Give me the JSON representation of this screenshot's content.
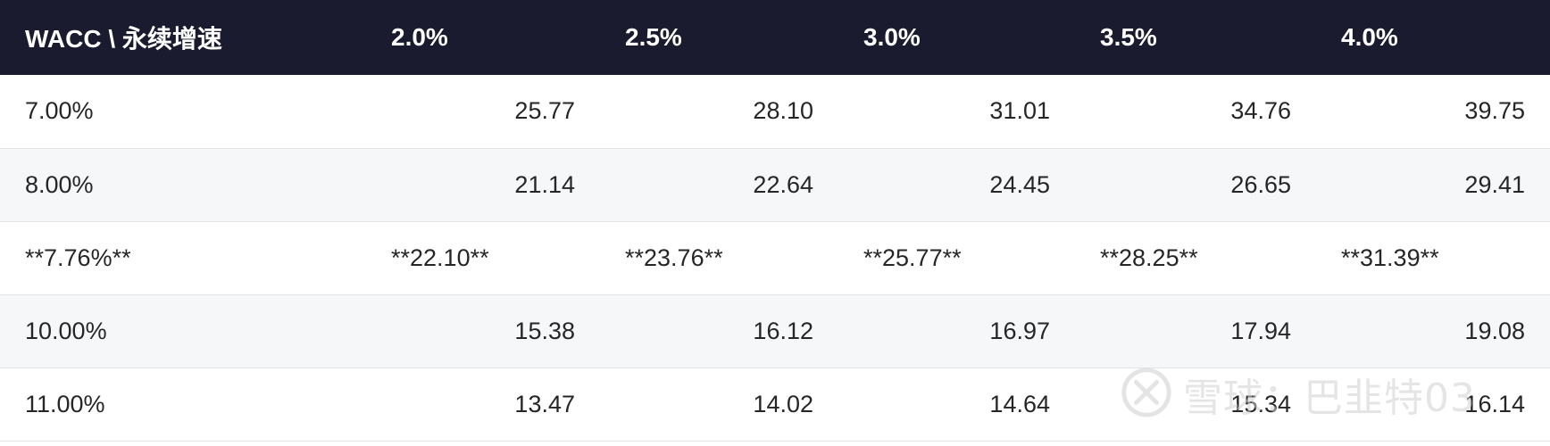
{
  "table": {
    "headers": [
      "WACC \\ 永续增速",
      "2.0%",
      "2.5%",
      "3.0%",
      "3.5%",
      "4.0%"
    ],
    "rows": [
      {
        "label": "7.00%",
        "values": [
          "25.77",
          "28.10",
          "31.01",
          "34.76",
          "39.75"
        ]
      },
      {
        "label": "8.00%",
        "values": [
          "21.14",
          "22.64",
          "24.45",
          "26.65",
          "29.41"
        ]
      },
      {
        "label": "**7.76%**",
        "values": [
          "**22.10**",
          "**23.76**",
          "**25.77**",
          "**28.25**",
          "**31.39**"
        ]
      },
      {
        "label": "10.00%",
        "values": [
          "15.38",
          "16.12",
          "16.97",
          "17.94",
          "19.08"
        ]
      },
      {
        "label": "11.00%",
        "values": [
          "13.47",
          "14.02",
          "14.64",
          "15.34",
          "16.14"
        ]
      }
    ]
  },
  "watermark": {
    "text": "雪球：巴韭特03",
    "icon": "snowball-logo-icon"
  },
  "colors": {
    "header_bg": "#1b1b2f",
    "header_text": "#ffffff",
    "alt_row_bg": "#f6f7f9",
    "border": "#e3e3e6"
  }
}
